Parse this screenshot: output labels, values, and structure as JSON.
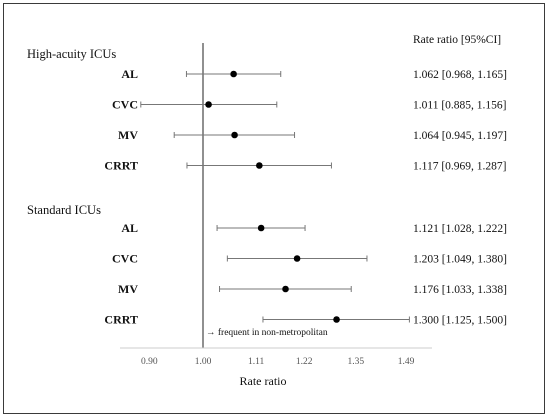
{
  "chart_data": {
    "type": "forest",
    "value_header": "Rate ratio [95%CI]",
    "xlabel": "Rate ratio",
    "reference_line": 1.0,
    "x_ticks": [
      "0.90",
      "1.00",
      "1.11",
      "1.22",
      "1.35",
      "1.49"
    ],
    "annotation": "→ frequent in non-metropolitan",
    "groups": [
      {
        "name": "High-acuity ICUs",
        "rows": [
          {
            "label": "AL",
            "estimate": 1.062,
            "lower": 0.968,
            "upper": 1.165,
            "text": "1.062 [0.968, 1.165]"
          },
          {
            "label": "CVC",
            "estimate": 1.011,
            "lower": 0.885,
            "upper": 1.156,
            "text": "1.011 [0.885, 1.156]"
          },
          {
            "label": "MV",
            "estimate": 1.064,
            "lower": 0.945,
            "upper": 1.197,
            "text": "1.064 [0.945, 1.197]"
          },
          {
            "label": "CRRT",
            "estimate": 1.117,
            "lower": 0.969,
            "upper": 1.287,
            "text": "1.117 [0.969, 1.287]"
          }
        ]
      },
      {
        "name": "Standard ICUs",
        "rows": [
          {
            "label": "AL",
            "estimate": 1.121,
            "lower": 1.028,
            "upper": 1.222,
            "text": "1.121 [1.028, 1.222]"
          },
          {
            "label": "CVC",
            "estimate": 1.203,
            "lower": 1.049,
            "upper": 1.38,
            "text": "1.203 [1.049, 1.380]"
          },
          {
            "label": "MV",
            "estimate": 1.176,
            "lower": 1.033,
            "upper": 1.338,
            "text": "1.176 [1.033, 1.338]"
          },
          {
            "label": "CRRT",
            "estimate": 1.3,
            "lower": 1.125,
            "upper": 1.5,
            "text": "1.300 [1.125, 1.500]"
          }
        ]
      }
    ]
  }
}
